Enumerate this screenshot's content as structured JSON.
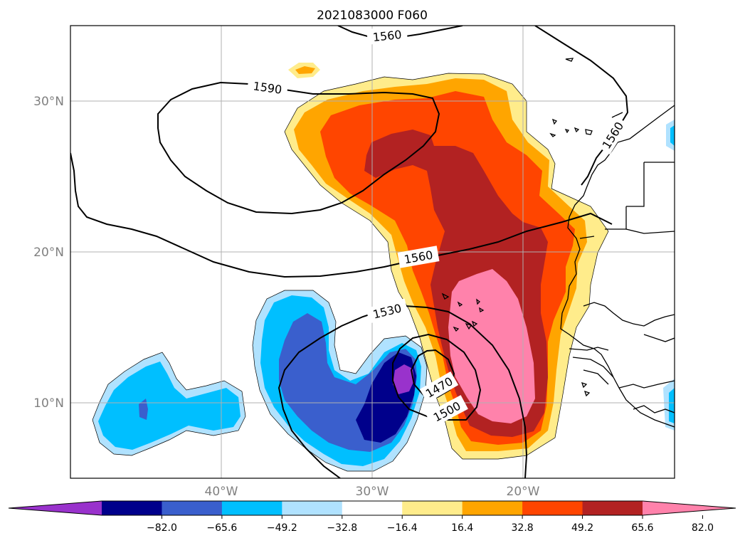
{
  "title": "2021083000 F060",
  "lat_labels": [
    "30°N",
    "20°N",
    "10°N"
  ],
  "lon_labels": [
    "40°W",
    "30°W",
    "20°W"
  ],
  "contour_labels": [
    "1560",
    "1590",
    "1560",
    "1560",
    "1530",
    "1500",
    "1470"
  ],
  "colorbar": {
    "ticks": [
      "−82.0",
      "−65.6",
      "−49.2",
      "−32.8",
      "−16.4",
      "16.4",
      "32.8",
      "49.2",
      "65.6",
      "82.0"
    ],
    "colors": [
      "#9932cc",
      "#00008b",
      "#3a5fcd",
      "#00bfff",
      "#b0e2ff",
      "#ffffff",
      "#ffec8b",
      "#ffa500",
      "#ff4500",
      "#b22222",
      "#ff82ab"
    ]
  },
  "colors": {
    "grid": "#b0b0b0",
    "contour": "#000000",
    "tick_label": "#808080"
  }
}
